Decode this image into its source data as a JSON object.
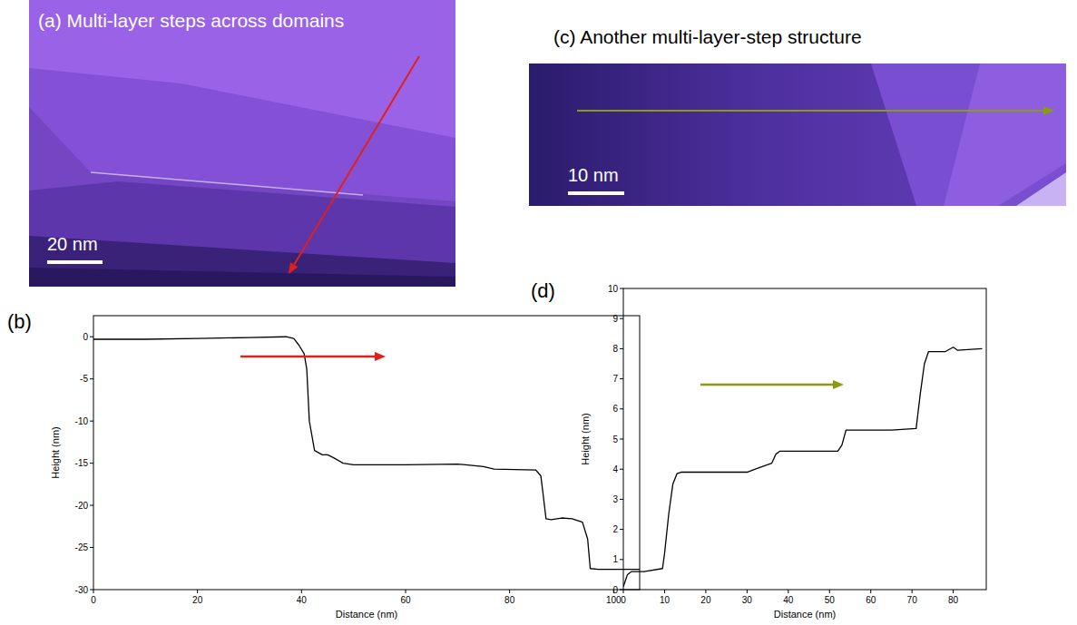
{
  "chart_data": [
    {
      "type": "image",
      "title": "(a) Multi-layer steps across domains",
      "annotations": [
        "20 nm"
      ]
    },
    {
      "type": "line",
      "panel": "(b)",
      "x_label": "Distance (nm)",
      "y_label": "Height (nm)",
      "color": "#000000",
      "x": [
        0,
        10,
        20,
        30,
        37,
        38.5,
        39.5,
        40.5,
        41,
        41.5,
        42.5,
        44,
        45,
        46,
        48,
        50,
        60,
        70,
        75,
        77,
        85,
        86,
        86.5,
        87,
        88,
        90,
        92,
        94,
        95,
        95.5,
        97,
        105
      ],
      "values": [
        -0.3,
        -0.3,
        -0.2,
        -0.1,
        0,
        -0.2,
        -1,
        -2,
        -3.8,
        -10,
        -13.5,
        -14,
        -14,
        -14.3,
        -15,
        -15.2,
        -15.2,
        -15.1,
        -15.4,
        -15.7,
        -15.8,
        -16.5,
        -19,
        -21.6,
        -21.7,
        -21.5,
        -21.6,
        -22,
        -24,
        -27.5,
        -27.6,
        -27.6
      ],
      "xlim": [
        0,
        105
      ],
      "xticks": [
        0,
        20,
        40,
        60,
        80,
        100
      ],
      "ylim": [
        -30,
        2.5
      ],
      "yticks": [
        -30,
        -25,
        -20,
        -15,
        -10,
        -5,
        0
      ]
    },
    {
      "type": "image",
      "title": "(c) Another multi-layer-step structure",
      "annotations": [
        "10 nm"
      ]
    },
    {
      "type": "line",
      "panel": "(d)",
      "x_label": "Distance (nm)",
      "y_label": "Height (nm)",
      "color": "#000000",
      "x": [
        0,
        0.5,
        1,
        2,
        5,
        9.5,
        10,
        11,
        12,
        13,
        14,
        20,
        30,
        32,
        34,
        36,
        37,
        38,
        45,
        52,
        53,
        54,
        56,
        65,
        71,
        72,
        73,
        74,
        78,
        80,
        81,
        87
      ],
      "values": [
        0.1,
        0.3,
        0.5,
        0.6,
        0.6,
        0.7,
        1.2,
        2.5,
        3.5,
        3.85,
        3.9,
        3.9,
        3.9,
        4.0,
        4.1,
        4.2,
        4.5,
        4.6,
        4.6,
        4.6,
        4.8,
        5.3,
        5.3,
        5.3,
        5.35,
        6.5,
        7.5,
        7.9,
        7.9,
        8.05,
        7.95,
        8.0
      ],
      "xlim": [
        0,
        88
      ],
      "xticks": [
        0,
        10,
        20,
        30,
        40,
        50,
        60,
        70,
        80
      ],
      "ylim": [
        0,
        10
      ],
      "yticks": [
        0,
        1,
        2,
        3,
        4,
        5,
        6,
        7,
        8,
        9,
        10
      ]
    }
  ]
}
